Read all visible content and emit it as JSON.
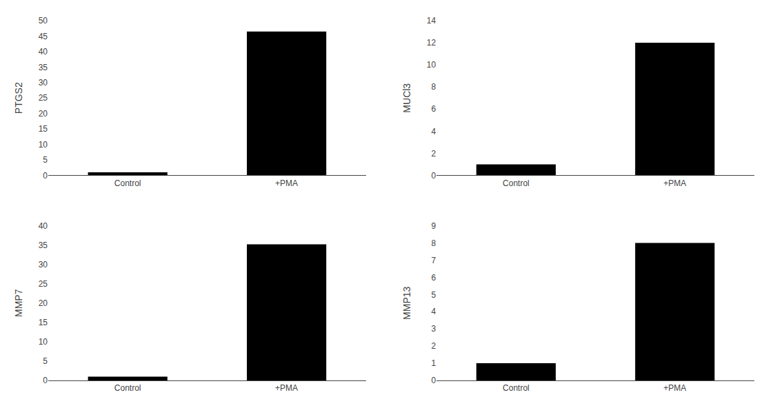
{
  "chart_data": [
    {
      "type": "bar",
      "ylabel": "PTGS2",
      "categories": [
        "Control",
        "+PMA"
      ],
      "values": [
        1.0,
        46.5
      ],
      "color": "#000000",
      "ylim": [
        0,
        50
      ],
      "yticks": [
        0,
        5,
        10,
        15,
        20,
        25,
        30,
        35,
        40,
        45,
        50
      ],
      "grid": false
    },
    {
      "type": "bar",
      "ylabel": "MUCl3",
      "categories": [
        "Control",
        "+PMA"
      ],
      "values": [
        1.0,
        12.0
      ],
      "color": "#000000",
      "ylim": [
        0,
        14
      ],
      "yticks": [
        0,
        2,
        4,
        6,
        8,
        10,
        12,
        14
      ],
      "grid": false
    },
    {
      "type": "bar",
      "ylabel": "MMP7",
      "categories": [
        "Control",
        "+PMA"
      ],
      "values": [
        1.0,
        35.2
      ],
      "color": "#000000",
      "ylim": [
        0,
        40
      ],
      "yticks": [
        0,
        5,
        10,
        15,
        20,
        25,
        30,
        35,
        40
      ],
      "grid": false
    },
    {
      "type": "bar",
      "ylabel": "MMP13",
      "categories": [
        "Control",
        "+PMA"
      ],
      "values": [
        1.0,
        8.0
      ],
      "color": "#000000",
      "ylim": [
        0,
        9
      ],
      "yticks": [
        0,
        1,
        2,
        3,
        4,
        5,
        6,
        7,
        8,
        9
      ],
      "grid": false
    }
  ]
}
